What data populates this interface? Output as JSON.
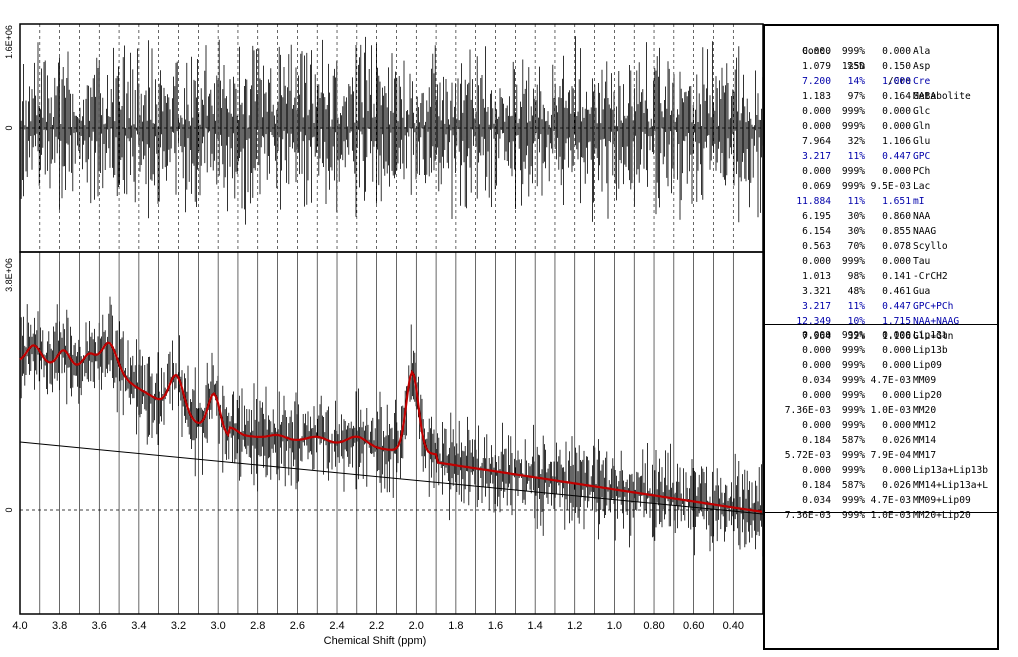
{
  "plot": {
    "residual_ymax_label": "1.6E+06",
    "residual_zero_label": "0",
    "spectrum_ymax_label": "3.8E+06",
    "spectrum_zero_label": "0",
    "xlabel": "Chemical Shift (ppm)",
    "x_ticks": [
      "4.0",
      "3.8",
      "3.6",
      "3.4",
      "3.2",
      "3.0",
      "2.8",
      "2.6",
      "2.4",
      "2.2",
      "2.0",
      "1.8",
      "1.6",
      "1.4",
      "1.2",
      "1.0",
      "0.80",
      "0.60",
      "0.40"
    ],
    "colors": {
      "fit": "#c00000",
      "data": "#000000",
      "highlight": "#0000aa"
    }
  },
  "table": {
    "header": {
      "conc": "Conc.",
      "sd": "%SD",
      "cre": "/Cre",
      "met": "Metabolite"
    },
    "rows": [
      {
        "conc": "0.000",
        "sd": "999%",
        "cre": "0.000",
        "met": "Ala",
        "hl": false
      },
      {
        "conc": "1.079",
        "sd": "125%",
        "cre": "0.150",
        "met": "Asp",
        "hl": false
      },
      {
        "conc": "7.200",
        "sd": "14%",
        "cre": "1.000",
        "met": "Cre",
        "hl": true
      },
      {
        "conc": "1.183",
        "sd": "97%",
        "cre": "0.164",
        "met": "GABA",
        "hl": false
      },
      {
        "conc": "0.000",
        "sd": "999%",
        "cre": "0.000",
        "met": "Glc",
        "hl": false
      },
      {
        "conc": "0.000",
        "sd": "999%",
        "cre": "0.000",
        "met": "Gln",
        "hl": false
      },
      {
        "conc": "7.964",
        "sd": "32%",
        "cre": "1.106",
        "met": "Glu",
        "hl": false
      },
      {
        "conc": "3.217",
        "sd": "11%",
        "cre": "0.447",
        "met": "GPC",
        "hl": true
      },
      {
        "conc": "0.000",
        "sd": "999%",
        "cre": "0.000",
        "met": "PCh",
        "hl": false
      },
      {
        "conc": "0.069",
        "sd": "999%",
        "cre": "9.5E-03",
        "met": "Lac",
        "hl": false
      },
      {
        "conc": "11.884",
        "sd": "11%",
        "cre": "1.651",
        "met": "mI",
        "hl": true
      },
      {
        "conc": "6.195",
        "sd": "30%",
        "cre": "0.860",
        "met": "NAA",
        "hl": false
      },
      {
        "conc": "6.154",
        "sd": "30%",
        "cre": "0.855",
        "met": "NAAG",
        "hl": false
      },
      {
        "conc": "0.563",
        "sd": "70%",
        "cre": "0.078",
        "met": "Scyllo",
        "hl": false
      },
      {
        "conc": "0.000",
        "sd": "999%",
        "cre": "0.000",
        "met": "Tau",
        "hl": false
      },
      {
        "conc": "1.013",
        "sd": "98%",
        "cre": "0.141",
        "met": "-CrCH2",
        "hl": false
      },
      {
        "conc": "3.321",
        "sd": "48%",
        "cre": "0.461",
        "met": "Gua",
        "hl": false
      },
      {
        "conc": "3.217",
        "sd": "11%",
        "cre": "0.447",
        "met": "GPC+PCh",
        "hl": true
      },
      {
        "conc": "12.349",
        "sd": "10%",
        "cre": "1.715",
        "met": "NAA+NAAG",
        "hl": true
      },
      {
        "conc": "7.964",
        "sd": "32%",
        "cre": "1.106",
        "met": "Glu+Gln",
        "hl": false
      }
    ],
    "lipid_rows": [
      {
        "conc": "0.000",
        "sd": "999%",
        "cre": "0.000",
        "met": "Lip13a"
      },
      {
        "conc": "0.000",
        "sd": "999%",
        "cre": "0.000",
        "met": "Lip13b"
      },
      {
        "conc": "0.000",
        "sd": "999%",
        "cre": "0.000",
        "met": "Lip09"
      },
      {
        "conc": "0.034",
        "sd": "999%",
        "cre": "4.7E-03",
        "met": "MM09"
      },
      {
        "conc": "0.000",
        "sd": "999%",
        "cre": "0.000",
        "met": "Lip20"
      },
      {
        "conc": "7.36E-03",
        "sd": "999%",
        "cre": "1.0E-03",
        "met": "MM20"
      },
      {
        "conc": "0.000",
        "sd": "999%",
        "cre": "0.000",
        "met": "MM12"
      },
      {
        "conc": "0.184",
        "sd": "587%",
        "cre": "0.026",
        "met": "MM14"
      },
      {
        "conc": "5.72E-03",
        "sd": "999%",
        "cre": "7.9E-04",
        "met": "MM17"
      },
      {
        "conc": "0.000",
        "sd": "999%",
        "cre": "0.000",
        "met": "Lip13a+Lip13b"
      },
      {
        "conc": "0.184",
        "sd": "587%",
        "cre": "0.026",
        "met": "MM14+Lip13a+L"
      },
      {
        "conc": "0.034",
        "sd": "999%",
        "cre": "4.7E-03",
        "met": "MM09+Lip09"
      },
      {
        "conc": "7.36E-03",
        "sd": "999%",
        "cre": "1.0E-03",
        "met": "MM20+Lip20"
      }
    ]
  }
}
